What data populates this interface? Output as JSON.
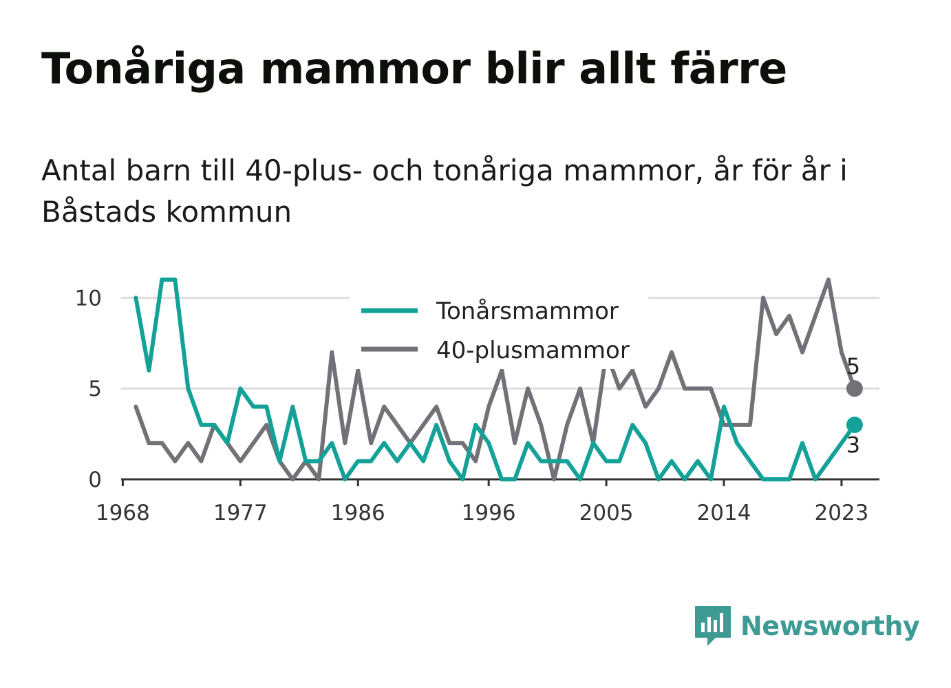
{
  "title": "Tonåriga mammor blir allt färre",
  "subtitle": "Antal barn till 40-plus- och tonåriga mammor, år för år i Båstads kommun",
  "brand": {
    "name": "Newsworthy",
    "color": "#3d9b94"
  },
  "chart_data": {
    "type": "line",
    "x": [
      1969,
      1970,
      1971,
      1972,
      1973,
      1974,
      1975,
      1976,
      1977,
      1978,
      1979,
      1980,
      1981,
      1982,
      1983,
      1984,
      1985,
      1986,
      1987,
      1988,
      1989,
      1990,
      1991,
      1992,
      1993,
      1994,
      1995,
      1996,
      1997,
      1998,
      1999,
      2000,
      2001,
      2002,
      2003,
      2004,
      2005,
      2006,
      2007,
      2008,
      2009,
      2010,
      2011,
      2012,
      2013,
      2014,
      2015,
      2016,
      2017,
      2018,
      2019,
      2020,
      2021,
      2022,
      2023,
      2024
    ],
    "series": [
      {
        "name": "Tonårsmammor",
        "color": "#13a198",
        "values": [
          10,
          6,
          11,
          11,
          5,
          3,
          3,
          2,
          5,
          4,
          4,
          1,
          4,
          1,
          1,
          2,
          0,
          1,
          1,
          2,
          1,
          2,
          1,
          3,
          1,
          0,
          3,
          2,
          0,
          0,
          2,
          1,
          1,
          1,
          0,
          2,
          1,
          1,
          3,
          2,
          0,
          1,
          0,
          1,
          0,
          4,
          2,
          1,
          0,
          0,
          0,
          2,
          0,
          1,
          2,
          3
        ]
      },
      {
        "name": "40-plusmammor",
        "color": "#717177",
        "values": [
          4,
          2,
          2,
          1,
          2,
          1,
          3,
          2,
          1,
          2,
          3,
          1,
          0,
          1,
          0,
          7,
          2,
          6,
          2,
          4,
          3,
          2,
          3,
          4,
          2,
          2,
          1,
          4,
          6,
          2,
          5,
          3,
          0,
          3,
          5,
          2,
          7,
          5,
          6,
          4,
          5,
          7,
          5,
          5,
          5,
          3,
          3,
          3,
          10,
          8,
          9,
          7,
          9,
          11,
          7,
          5
        ]
      }
    ],
    "x_ticks": [
      "1968",
      "1977",
      "1986",
      "1996",
      "2005",
      "2014",
      "2023"
    ],
    "y_ticks": [
      "0",
      "5",
      "10"
    ],
    "ylim": [
      0,
      11
    ],
    "xlim": [
      1968,
      2025
    ],
    "end_labels": [
      "3",
      "5"
    ],
    "legend_position": "top-center",
    "grid": "horizontal"
  }
}
